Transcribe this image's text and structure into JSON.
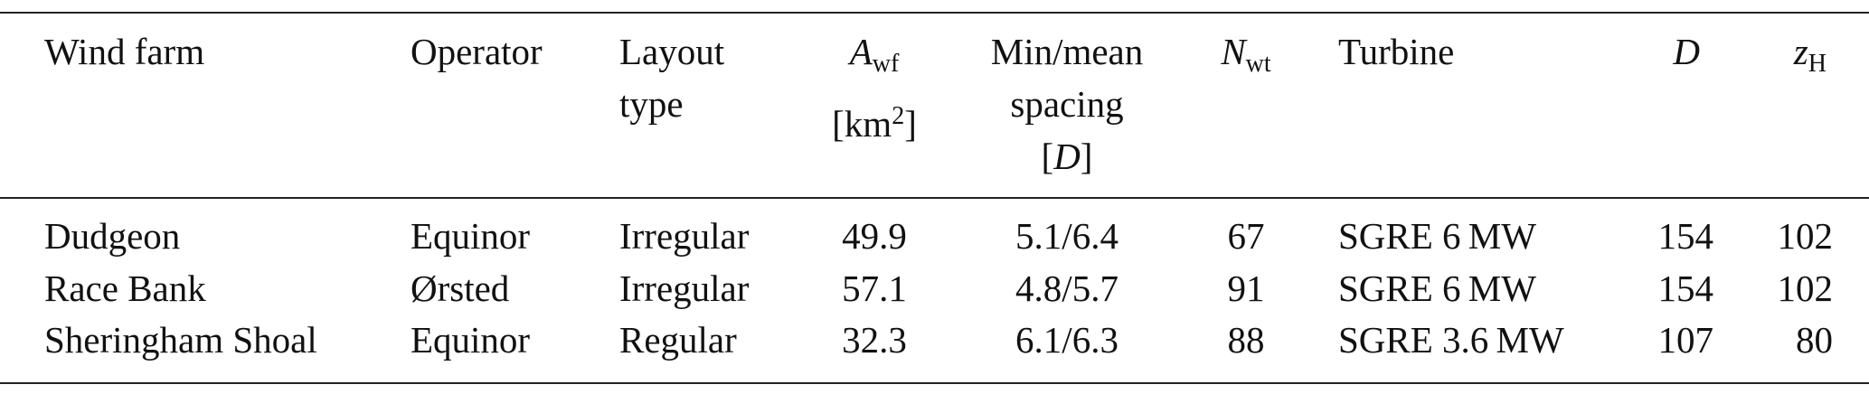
{
  "header": {
    "wind_farm": "Wind farm",
    "operator": "Operator",
    "layout": [
      "Layout",
      "type"
    ],
    "area": {
      "symbol": "A",
      "subscript": "wf",
      "unit_open": "[km",
      "unit_power": "2",
      "unit_close": "]"
    },
    "spacing": {
      "lines": [
        "Min/mean",
        "spacing"
      ],
      "open": "[",
      "symbol": "D",
      "close": "]"
    },
    "turbines": {
      "symbol": "N",
      "subscript": "wt"
    },
    "turbine": "Turbine",
    "diameter": "D",
    "hub": {
      "symbol": "z",
      "subscript": "H"
    }
  },
  "rows": [
    [
      "Dudgeon",
      "Equinor",
      "Irregular",
      "49.9",
      "5.1/6.4",
      "67",
      "SGRE 6 MW",
      "154",
      "102"
    ],
    [
      "Race Bank",
      "Ørsted",
      "Irregular",
      "57.1",
      "4.8/5.7",
      "91",
      "SGRE 6 MW",
      "154",
      "102"
    ],
    [
      "Sheringham Shoal",
      "Equinor",
      "Regular",
      "32.3",
      "6.1/6.3",
      "88",
      "SGRE 3.6 MW",
      "107",
      "80"
    ]
  ]
}
